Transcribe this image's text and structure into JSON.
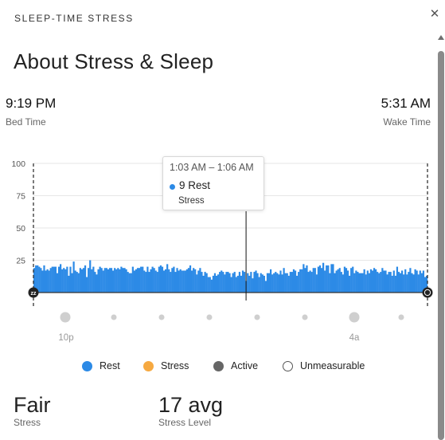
{
  "header": {
    "title": "SLEEP-TIME STRESS",
    "close_icon": "close-icon"
  },
  "page": {
    "title": "About Stress & Sleep"
  },
  "bed": {
    "time": "9:19 PM",
    "label": "Bed Time"
  },
  "wake": {
    "time": "5:31 AM",
    "label": "Wake Time"
  },
  "tooltip": {
    "time_range": "1:03 AM – 1:06 AM",
    "value_text": "9 Rest",
    "label": "Stress"
  },
  "chart_data": {
    "type": "bar",
    "title": "",
    "xlabel": "",
    "ylabel": "",
    "ylim": [
      0,
      100
    ],
    "yticks": [
      25,
      50,
      75,
      100
    ],
    "x_tick_labels": [
      "10p",
      "4a"
    ],
    "series": [
      {
        "name": "Rest",
        "color": "#2c8ae6",
        "values": [
          19,
          21,
          21,
          20,
          19,
          17,
          21,
          17,
          18,
          17,
          19,
          20,
          20,
          20,
          15,
          20,
          22,
          18,
          19,
          18,
          20,
          13,
          20,
          15,
          24,
          17,
          16,
          15,
          19,
          18,
          19,
          21,
          12,
          19,
          25,
          18,
          20,
          16,
          14,
          18,
          20,
          19,
          17,
          19,
          19,
          18,
          19,
          19,
          17,
          19,
          18,
          19,
          18,
          20,
          19,
          19,
          18,
          16,
          15,
          15,
          20,
          17,
          18,
          19,
          19,
          20,
          20,
          17,
          16,
          20,
          16,
          18,
          20,
          19,
          17,
          16,
          20,
          21,
          20,
          17,
          18,
          22,
          18,
          16,
          19,
          20,
          16,
          19,
          17,
          18,
          17,
          17,
          17,
          18,
          19,
          21,
          17,
          19,
          18,
          14,
          17,
          19,
          16,
          13,
          16,
          15,
          12,
          12,
          10,
          13,
          15,
          13,
          14,
          16,
          17,
          16,
          14,
          16,
          16,
          15,
          12,
          15,
          16,
          12,
          13,
          16,
          13,
          17,
          16,
          9,
          15,
          13,
          16,
          11,
          16,
          17,
          15,
          12,
          15,
          14,
          13,
          9,
          15,
          15,
          18,
          14,
          15,
          16,
          15,
          14,
          17,
          14,
          19,
          15,
          15,
          13,
          16,
          16,
          18,
          17,
          13,
          16,
          18,
          18,
          22,
          19,
          21,
          16,
          17,
          16,
          19,
          19,
          14,
          20,
          21,
          19,
          23,
          17,
          21,
          21,
          15,
          22,
          22,
          15,
          17,
          18,
          19,
          16,
          14,
          20,
          19,
          17,
          13,
          19,
          20,
          15,
          17,
          16,
          15,
          15,
          15,
          18,
          14,
          17,
          15,
          18,
          17,
          19,
          18,
          16,
          15,
          16,
          19,
          17,
          17,
          14,
          16,
          16,
          13,
          17,
          13,
          20,
          16,
          15,
          17,
          14,
          18,
          14,
          16,
          19,
          15,
          14,
          18,
          17,
          14,
          17,
          15,
          17,
          12,
          13
        ]
      }
    ],
    "highlight": {
      "time_range": "1:03 AM – 1:06 AM",
      "value": 9,
      "category": "Rest"
    },
    "legend": [
      {
        "label": "Rest",
        "color": "#2c8ae6"
      },
      {
        "label": "Stress",
        "color": "#f6a941"
      },
      {
        "label": "Active",
        "color": "#666666"
      },
      {
        "label": "Unmeasurable",
        "color": "#ffffff"
      }
    ]
  },
  "stats": [
    {
      "value": "Fair",
      "label": "Stress"
    },
    {
      "value": "17 avg",
      "label": "Stress Level"
    }
  ]
}
